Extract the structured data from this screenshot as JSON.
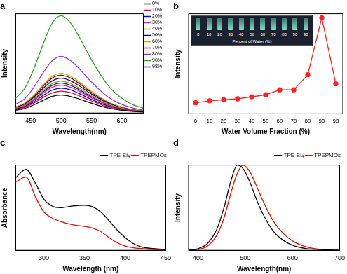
{
  "chart_data": [
    {
      "type": "line",
      "title": "a",
      "x_label": "Wavelength(nm)",
      "y_label": "Intensity",
      "x": [
        425,
        440,
        455,
        470,
        485,
        500,
        515,
        530,
        545,
        560,
        575,
        590,
        605,
        620,
        635
      ],
      "xlim": [
        425,
        635
      ],
      "xticks": [
        450,
        500,
        550,
        600
      ],
      "ylim": [
        0,
        100
      ],
      "tick_labels": "x",
      "grid": false,
      "legend": "right",
      "series": [
        {
          "name": "0%",
          "color": "#000000",
          "values": [
            2.7,
            4.5,
            8.1,
            12.6,
            16.6,
            18,
            16.7,
            14,
            10.8,
            7.9,
            5.4,
            3.6,
            2.3,
            1.4,
            0.9
          ]
        },
        {
          "name": "10%",
          "color": "#ff0000",
          "values": [
            3.3,
            5.5,
            9.9,
            15.4,
            20.2,
            22,
            20.5,
            17.2,
            13.2,
            9.7,
            6.6,
            4.4,
            2.9,
            1.8,
            1.1
          ]
        },
        {
          "name": "20%",
          "color": "#0000ff",
          "values": [
            3.8,
            6.3,
            11.3,
            17.5,
            23,
            25,
            23.3,
            19.5,
            15,
            11,
            7.5,
            5,
            3.3,
            2,
            1.3
          ]
        },
        {
          "name": "30%",
          "color": "#e0209f",
          "values": [
            4.2,
            7,
            12.6,
            19.6,
            25.8,
            28,
            26,
            21.8,
            16.8,
            12.3,
            8.4,
            5.6,
            3.6,
            2.2,
            1.4
          ]
        },
        {
          "name": "40%",
          "color": "#9a9a00",
          "values": [
            4.8,
            8,
            14.4,
            22.4,
            29.4,
            32,
            29.8,
            25,
            19.2,
            14.1,
            9.6,
            6.4,
            4.2,
            2.6,
            1.6
          ]
        },
        {
          "name": "50%",
          "color": "#000080",
          "values": [
            5.3,
            8.8,
            15.8,
            24.5,
            32.2,
            35,
            32.6,
            27.3,
            21,
            15.4,
            10.5,
            7,
            4.6,
            2.8,
            1.8
          ]
        },
        {
          "name": "60%",
          "color": "#e0a000",
          "values": [
            6,
            10,
            18,
            28,
            36.8,
            40,
            37.2,
            31.2,
            24,
            17.6,
            12,
            8,
            5.2,
            3.2,
            2
          ]
        },
        {
          "name": "70%",
          "color": "#800000",
          "values": [
            5.7,
            9.5,
            17.1,
            26.6,
            35,
            38,
            35.3,
            29.6,
            22.8,
            16.7,
            11.4,
            7.6,
            4.9,
            3,
            1.9
          ]
        },
        {
          "name": "80%",
          "color": "#9b30ff",
          "values": [
            8.6,
            14.3,
            25.7,
            39.9,
            52.4,
            57,
            53,
            44.5,
            34.2,
            25.1,
            17.1,
            11.4,
            7.4,
            4.6,
            2.9
          ]
        },
        {
          "name": "90%",
          "color": "#22aa22",
          "values": [
            14.7,
            24.5,
            44.1,
            68.6,
            90.2,
            98,
            91.1,
            76.4,
            58.8,
            43.1,
            29.4,
            19.6,
            12.7,
            7.8,
            4.9
          ]
        },
        {
          "name": "98%",
          "color": "#1a1a6e",
          "values": [
            4.5,
            7.5,
            13.5,
            21,
            27.6,
            30,
            27.9,
            23.4,
            18,
            13.2,
            9,
            6,
            3.9,
            2.4,
            1.5
          ]
        }
      ]
    },
    {
      "type": "line",
      "title": "b",
      "x_label": "Water Volume Fraction (%)",
      "y_label": "Intensity",
      "categories": [
        0,
        10,
        20,
        30,
        40,
        50,
        60,
        70,
        80,
        90,
        98
      ],
      "ylim": [
        0,
        100
      ],
      "tick_labels": "x",
      "grid": false,
      "series": [
        {
          "color": "#ff2020",
          "marker": "circle",
          "values": [
            11,
            13,
            14,
            15,
            17,
            19,
            24,
            24,
            39,
            96,
            30
          ]
        }
      ],
      "inset": {
        "labels": [
          "0",
          "10",
          "20",
          "30",
          "40",
          "50",
          "60",
          "70",
          "80",
          "90",
          "98"
        ],
        "caption": "Percent of Water (%)"
      }
    },
    {
      "type": "line",
      "title": "c",
      "x_label": "Wavelength (nm)",
      "y_label": "Absorbance",
      "x": [
        265,
        278,
        290,
        300,
        310,
        320,
        335,
        350,
        360,
        370,
        380,
        390,
        400,
        410,
        420,
        435,
        450
      ],
      "xlim": [
        265,
        450
      ],
      "xticks": [
        300,
        350,
        400,
        450
      ],
      "ylim": [
        0,
        100
      ],
      "tick_labels": "x",
      "grid": false,
      "legend": "upper right",
      "series": [
        {
          "name": "TPE-Si₄",
          "color": "#000000",
          "values": [
            85,
            95,
            78,
            60,
            52,
            50,
            52,
            53,
            51,
            45,
            35,
            24,
            15,
            8,
            4,
            2,
            1
          ]
        },
        {
          "name": "TPEPMOs",
          "color": "#ff0000",
          "values": [
            80,
            86,
            62,
            45,
            38,
            34,
            30,
            28,
            26,
            22,
            15,
            9,
            5,
            3,
            2,
            1,
            0.5
          ]
        }
      ]
    },
    {
      "type": "line",
      "title": "d",
      "x_label": "Wavelength(nm)",
      "y_label": "Intensity",
      "x": [
        380,
        400,
        420,
        440,
        455,
        470,
        483,
        495,
        510,
        525,
        540,
        560,
        580,
        600,
        630,
        660,
        700
      ],
      "xlim": [
        380,
        700
      ],
      "xticks": [
        400,
        500,
        600,
        700
      ],
      "ylim": [
        0,
        100
      ],
      "tick_labels": "x",
      "grid": false,
      "legend": "upper right",
      "series": [
        {
          "name": "TPE-Si₄",
          "color": "#000000",
          "values": [
            0,
            2,
            8,
            25,
            50,
            82,
            100,
            96,
            80,
            58,
            40,
            22,
            12,
            6,
            2,
            1,
            0
          ]
        },
        {
          "name": "TPEPMOs",
          "color": "#ff0000",
          "values": [
            0,
            1,
            5,
            18,
            38,
            68,
            90,
            100,
            92,
            74,
            55,
            34,
            20,
            11,
            4,
            1,
            0
          ]
        }
      ]
    }
  ]
}
